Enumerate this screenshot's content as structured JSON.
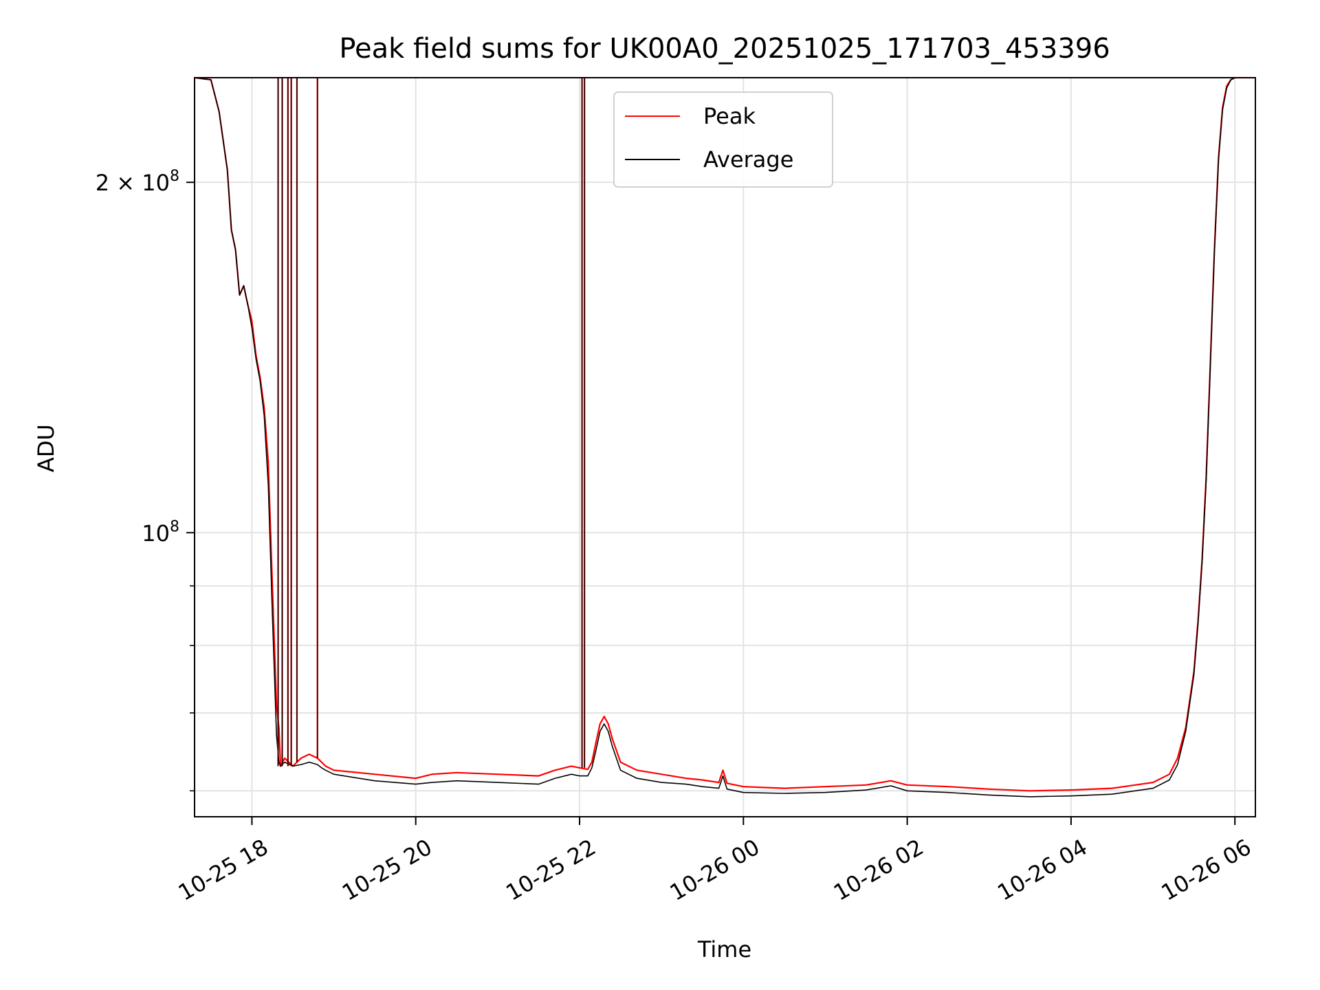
{
  "chart_data": {
    "type": "line",
    "title": "Peak field sums for UK00A0_20251025_171703_453396",
    "xlabel": "Time",
    "ylabel": "ADU",
    "x_unit": "hours since 10-25 00:00",
    "xlim": [
      17.3,
      30.25
    ],
    "ylim": [
      57000000,
      246000000
    ],
    "yscale": "log",
    "grid": true,
    "legend_position": "upper center",
    "x_ticks": [
      {
        "value": 18,
        "label": "10-25 18"
      },
      {
        "value": 20,
        "label": "10-25 20"
      },
      {
        "value": 22,
        "label": "10-25 22"
      },
      {
        "value": 24,
        "label": "10-26 00"
      },
      {
        "value": 26,
        "label": "10-26 02"
      },
      {
        "value": 28,
        "label": "10-26 04"
      },
      {
        "value": 30,
        "label": "10-26 06"
      }
    ],
    "y_major_ticks": [
      {
        "value": 100000000,
        "base": "10",
        "exp": "8"
      },
      {
        "value": 200000000,
        "base": "2 × 10",
        "exp": "8"
      }
    ],
    "y_minor_ticks": [
      60000000,
      70000000,
      80000000,
      90000000
    ],
    "series": [
      {
        "name": "Peak",
        "color": "#ff0000",
        "x": [
          17.3,
          17.5,
          17.6,
          17.7,
          17.75,
          17.8,
          17.85,
          17.9,
          17.95,
          18.0,
          18.05,
          18.1,
          18.15,
          18.2,
          18.25,
          18.3,
          18.33,
          18.35,
          18.4,
          18.5,
          18.6,
          18.7,
          18.8,
          18.85,
          18.9,
          19.0,
          19.5,
          20.0,
          20.2,
          20.5,
          21.0,
          21.5,
          21.7,
          21.9,
          22.0,
          22.1,
          22.15,
          22.2,
          22.25,
          22.3,
          22.35,
          22.4,
          22.5,
          22.7,
          23.0,
          23.3,
          23.5,
          23.7,
          23.75,
          23.8,
          24.0,
          24.5,
          25.0,
          25.5,
          25.8,
          26.0,
          26.5,
          27.0,
          27.5,
          28.0,
          28.5,
          29.0,
          29.2,
          29.3,
          29.4,
          29.5,
          29.55,
          29.6,
          29.65,
          29.7,
          29.75,
          29.8,
          29.85,
          29.9,
          29.95,
          30.0,
          30.05,
          30.25
        ],
        "y": [
          246000000,
          245000000,
          230000000,
          205000000,
          182000000,
          175000000,
          160000000,
          163000000,
          157000000,
          152000000,
          142000000,
          136000000,
          128000000,
          115000000,
          90000000,
          71000000,
          68000000,
          63000000,
          64000000,
          63000000,
          64000000,
          64500000,
          64000000,
          63500000,
          63000000,
          62500000,
          62000000,
          61500000,
          62000000,
          62200000,
          62000000,
          61800000,
          62500000,
          63000000,
          62800000,
          62600000,
          63500000,
          66000000,
          68500000,
          69500000,
          68500000,
          66500000,
          63500000,
          62500000,
          62000000,
          61500000,
          61300000,
          61000000,
          62500000,
          60900000,
          60500000,
          60300000,
          60500000,
          60700000,
          61200000,
          60700000,
          60500000,
          60200000,
          60000000,
          60100000,
          60300000,
          61000000,
          62000000,
          64000000,
          68000000,
          76000000,
          84000000,
          95000000,
          112000000,
          140000000,
          175000000,
          210000000,
          232000000,
          242000000,
          245000000,
          246000000,
          246000000,
          246000000
        ]
      },
      {
        "name": "Average",
        "color": "#000000",
        "x": [
          17.3,
          17.5,
          17.6,
          17.7,
          17.75,
          17.8,
          17.85,
          17.9,
          17.95,
          18.0,
          18.05,
          18.1,
          18.15,
          18.2,
          18.25,
          18.3,
          18.33,
          18.35,
          18.4,
          18.5,
          18.6,
          18.7,
          18.8,
          18.85,
          18.9,
          19.0,
          19.5,
          20.0,
          20.2,
          20.5,
          21.0,
          21.5,
          21.7,
          21.9,
          22.0,
          22.1,
          22.15,
          22.2,
          22.25,
          22.3,
          22.35,
          22.4,
          22.5,
          22.7,
          23.0,
          23.3,
          23.5,
          23.7,
          23.75,
          23.8,
          24.0,
          24.5,
          25.0,
          25.5,
          25.8,
          26.0,
          26.5,
          27.0,
          27.5,
          28.0,
          28.5,
          29.0,
          29.2,
          29.3,
          29.4,
          29.5,
          29.55,
          29.6,
          29.65,
          29.7,
          29.75,
          29.8,
          29.85,
          29.9,
          29.95,
          30.0,
          30.05,
          30.25
        ],
        "y": [
          246000000,
          245000000,
          230000000,
          205000000,
          182000000,
          175000000,
          160000000,
          163000000,
          157000000,
          150000000,
          141000000,
          135000000,
          126000000,
          110000000,
          85000000,
          67000000,
          63500000,
          63000000,
          63500000,
          63000000,
          63200000,
          63500000,
          63200000,
          62800000,
          62500000,
          62000000,
          61200000,
          60800000,
          61000000,
          61200000,
          61000000,
          60800000,
          61500000,
          62000000,
          61800000,
          61800000,
          62800000,
          65000000,
          67500000,
          68500000,
          67500000,
          65500000,
          62500000,
          61500000,
          61000000,
          60800000,
          60500000,
          60300000,
          61800000,
          60200000,
          59800000,
          59700000,
          59800000,
          60100000,
          60600000,
          60000000,
          59800000,
          59500000,
          59300000,
          59400000,
          59600000,
          60300000,
          61300000,
          63200000,
          67500000,
          75500000,
          83500000,
          94500000,
          111000000,
          139000000,
          174000000,
          209000000,
          231000000,
          241000000,
          245000000,
          246000000,
          246000000,
          246000000
        ]
      }
    ],
    "spikes": [
      {
        "x": 18.32,
        "from": 63000000
      },
      {
        "x": 18.37,
        "from": 63000000
      },
      {
        "x": 18.44,
        "from": 63000000
      },
      {
        "x": 18.48,
        "from": 63000000
      },
      {
        "x": 18.55,
        "from": 63500000
      },
      {
        "x": 18.8,
        "from": 64000000
      },
      {
        "x": 22.03,
        "from": 62800000
      },
      {
        "x": 22.06,
        "from": 62800000
      }
    ],
    "legend": {
      "entries": [
        {
          "label": "Peak",
          "color": "#ff0000"
        },
        {
          "label": "Average",
          "color": "#000000"
        }
      ]
    }
  }
}
